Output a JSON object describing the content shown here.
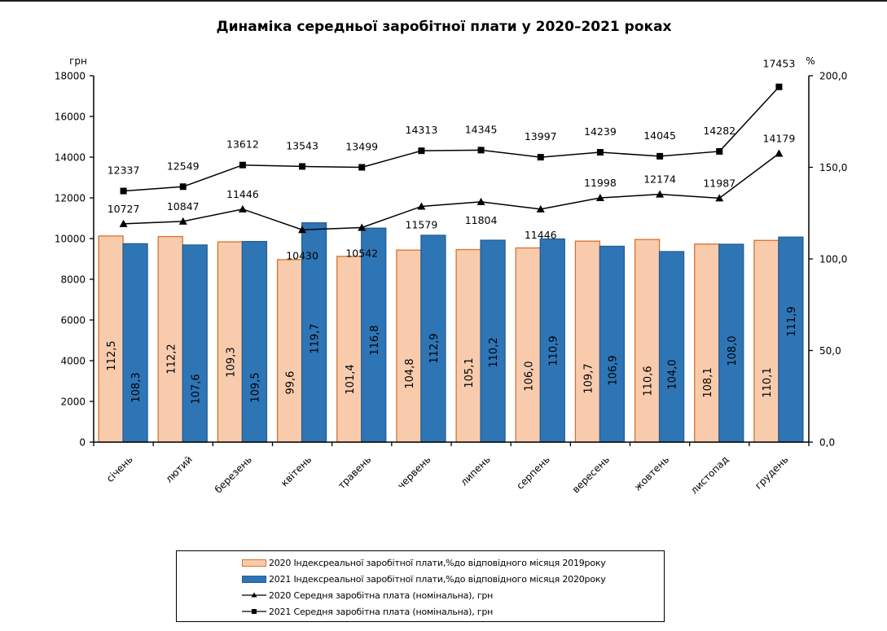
{
  "chart_data": {
    "type": "bar+line",
    "title": "Динаміка середньої заробітної плати у 2020–2021 роках",
    "categories": [
      "січень",
      "лютий",
      "березень",
      "квітень",
      "травень",
      "червень",
      "липень",
      "серпень",
      "вересень",
      "жовтень",
      "листопад",
      "грудень"
    ],
    "left_axis": {
      "label": "грн",
      "range": [
        0,
        18000
      ],
      "ticks": [
        "0",
        "2000",
        "4000",
        "6000",
        "8000",
        "10000",
        "12000",
        "14000",
        "16000",
        "18000"
      ]
    },
    "right_axis": {
      "label": "%",
      "range": [
        0,
        200
      ],
      "ticks": [
        "0,0",
        "50,0",
        "100,0",
        "150,0",
        "200,0"
      ]
    },
    "grid": false,
    "legend_position": "bottom",
    "series": [
      {
        "name": "2020 Індексреальної заробітної плати,%до відповідного місяця 2019року",
        "type": "bar",
        "axis": "right",
        "color": "#F8CBAD",
        "border": "#D9712B",
        "values": [
          112.5,
          112.2,
          109.3,
          99.6,
          101.4,
          104.8,
          105.1,
          106.0,
          109.7,
          110.6,
          108.1,
          110.1
        ],
        "labels": [
          "112,5",
          "112,2",
          "109,3",
          "99,6",
          "101,4",
          "104,8",
          "105,1",
          "106,0",
          "109,7",
          "110,6",
          "108,1",
          "110,1"
        ]
      },
      {
        "name": "2021 Індексреальної заробітної плати,%до відповідного місяця 2020року",
        "type": "bar",
        "axis": "right",
        "color": "#2E75B6",
        "border": "#245E93",
        "values": [
          108.3,
          107.6,
          109.5,
          119.7,
          116.8,
          112.9,
          110.2,
          110.9,
          106.9,
          104.0,
          108.0,
          111.9
        ],
        "labels": [
          "108,3",
          "107,6",
          "109,5",
          "119,7",
          "116,8",
          "112,9",
          "110,2",
          "110,9",
          "106,9",
          "104,0",
          "108,0",
          "111,9"
        ]
      },
      {
        "name": "2020 Середня заробітна плата (номінальна), грн",
        "type": "line",
        "axis": "left",
        "marker": "triangle",
        "color": "#000000",
        "values": [
          10727,
          10847,
          11446,
          10430,
          10542,
          11579,
          11804,
          11446,
          11998,
          12174,
          11987,
          14179
        ]
      },
      {
        "name": "2021 Середня заробітна плата (номінальна), грн",
        "type": "line",
        "axis": "left",
        "marker": "square",
        "color": "#000000",
        "values": [
          12337,
          12549,
          13612,
          13543,
          13499,
          14313,
          14345,
          13997,
          14239,
          14045,
          14282,
          17453
        ]
      }
    ]
  }
}
